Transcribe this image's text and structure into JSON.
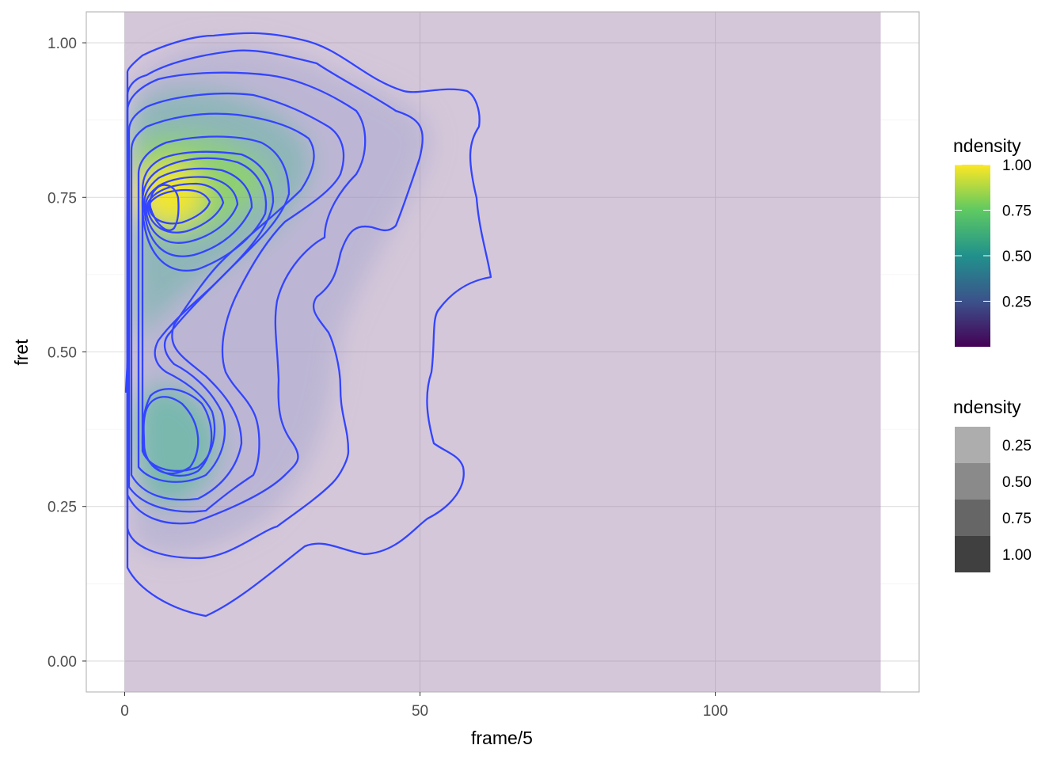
{
  "chart_data": {
    "type": "contour",
    "title": "",
    "xlabel": "frame/5",
    "ylabel": "fret",
    "xlim": [
      -6.5,
      134.5
    ],
    "ylim": [
      -0.05,
      1.05
    ],
    "x_ticks": [
      0,
      50,
      100
    ],
    "x_tick_labels": [
      "0",
      "50",
      "100"
    ],
    "y_ticks": [
      0.0,
      0.25,
      0.5,
      0.75,
      1.0
    ],
    "y_tick_labels": [
      "0.00",
      "0.25",
      "0.50",
      "0.75",
      "1.00"
    ],
    "grid": true,
    "raster_extent": {
      "x": [
        0,
        128
      ],
      "y": [
        -0.05,
        1.05
      ]
    },
    "contour_color": "#3344ff",
    "fill_colormap": "viridis",
    "density_peaks": [
      {
        "x": 6,
        "y": 0.74,
        "ndensity": 1.0
      },
      {
        "x": 7,
        "y": 0.36,
        "ndensity": 0.6
      }
    ],
    "legend_position": "right",
    "legends": [
      {
        "title": "ndensity",
        "kind": "colorbar",
        "breaks": [
          "1.00",
          "0.75",
          "0.50",
          "0.25"
        ],
        "colors": [
          "#440154",
          "#3b528b",
          "#21918c",
          "#5ec962",
          "#fde725"
        ]
      },
      {
        "title": "ndensity",
        "kind": "alpha",
        "entries": [
          "0.25",
          "0.50",
          "0.75",
          "1.00"
        ],
        "swatch_colors": [
          "#adadad",
          "#8a8a8a",
          "#666666",
          "#404040"
        ]
      }
    ]
  },
  "colors": {
    "background_fill": "#d4c7d9",
    "grid": "#cfcfcf",
    "panel_border": "#b3b3b3",
    "contour": "#3344ff"
  }
}
